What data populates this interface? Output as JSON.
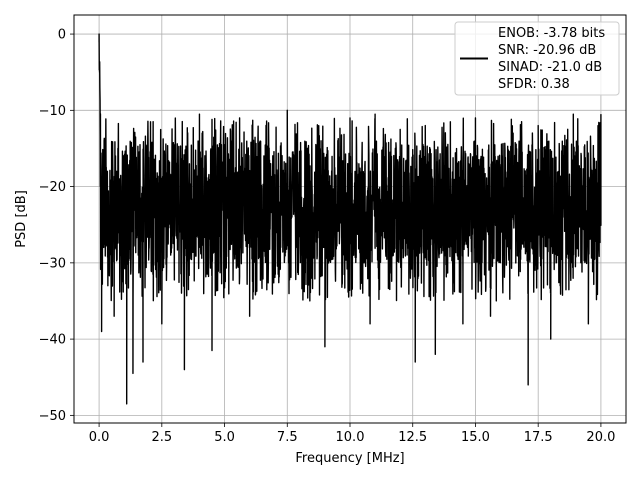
{
  "chart_data": {
    "type": "line",
    "title": "",
    "xlabel": "Frequency [MHz]",
    "ylabel": "PSD [dB]",
    "xlim": [
      -1.0,
      21.0
    ],
    "ylim": [
      -51.0,
      2.5
    ],
    "xticks": [
      0.0,
      2.5,
      5.0,
      7.5,
      10.0,
      12.5,
      15.0,
      17.5,
      20.0
    ],
    "xtick_labels": [
      "0.0",
      "2.5",
      "5.0",
      "7.5",
      "10.0",
      "12.5",
      "15.0",
      "17.5",
      "20.0"
    ],
    "yticks": [
      0,
      -10,
      -20,
      -30,
      -40,
      -50
    ],
    "ytick_labels": [
      "0",
      "−10",
      "−20",
      "−30",
      "−40",
      "−50"
    ],
    "grid": true,
    "legend_placement": "upper-right",
    "legend_entries": [
      "ENOB: -3.78 bits",
      "SNR: -20.96 dB",
      "SINAD: -21.0 dB",
      "SFDR: 0.38"
    ],
    "line_color": "#000000",
    "series": [
      {
        "x": [
          0.0,
          0.02,
          0.05,
          0.1,
          0.2,
          0.35,
          0.5,
          0.6,
          0.75,
          1.1,
          1.35,
          1.75,
          2.05,
          2.5,
          3.0,
          3.4,
          4.0,
          4.5,
          5.6,
          6.0,
          7.5,
          9.0,
          10.0,
          10.8,
          11.0,
          12.0,
          12.6,
          13.0,
          13.4,
          14.0,
          14.5,
          15.0,
          15.6,
          16.5,
          17.1,
          17.5,
          18.0,
          18.9,
          19.5,
          20.0
        ],
        "values": [
          0.0,
          -5.0,
          -20.0,
          -39.0,
          -14.0,
          -33.0,
          -20.0,
          -37.0,
          -15.0,
          -48.5,
          -44.5,
          -43.0,
          -11.5,
          -38.0,
          -18.0,
          -44.0,
          -10.5,
          -41.5,
          -11.0,
          -37.0,
          -10.0,
          -41.0,
          -11.0,
          -38.0,
          -10.5,
          -12.5,
          -43.0,
          -12.0,
          -42.0,
          -11.5,
          -38.0,
          -11.0,
          -37.0,
          -13.0,
          -46.0,
          -12.0,
          -40.0,
          -10.5,
          -38.0,
          -10.5
        ]
      }
    ]
  }
}
